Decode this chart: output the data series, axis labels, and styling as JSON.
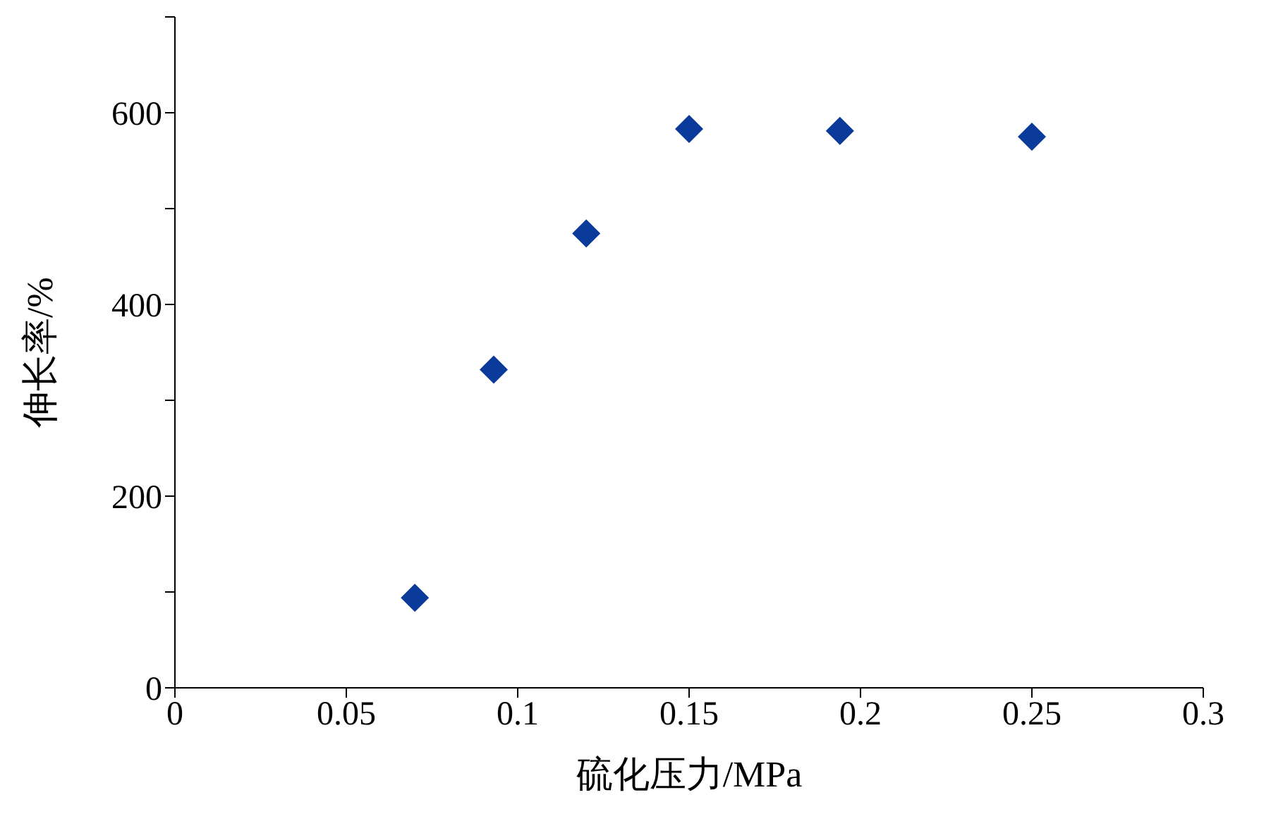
{
  "chart_data": {
    "type": "scatter",
    "xlabel": "硫化压力/MPa",
    "ylabel": "伸长率/%",
    "x": [
      0.07,
      0.093,
      0.12,
      0.15,
      0.194,
      0.25
    ],
    "series": [
      {
        "color": "#0a3a9a",
        "values": [
          94,
          332,
          474,
          583,
          581,
          575
        ]
      }
    ],
    "xlim": [
      0,
      0.3
    ],
    "xticks": [
      0,
      0.05,
      0.1,
      0.15,
      0.2,
      0.25,
      0.3
    ],
    "ylim": [
      0,
      700
    ],
    "yticks": [
      0,
      {
        "value": 100,
        "label": null
      },
      200,
      {
        "value": 300,
        "label": null
      },
      400,
      {
        "value": 500,
        "label": null
      },
      600,
      {
        "value": 700,
        "label": null
      }
    ],
    "grid": false,
    "legend": false,
    "marker": "diamond"
  }
}
